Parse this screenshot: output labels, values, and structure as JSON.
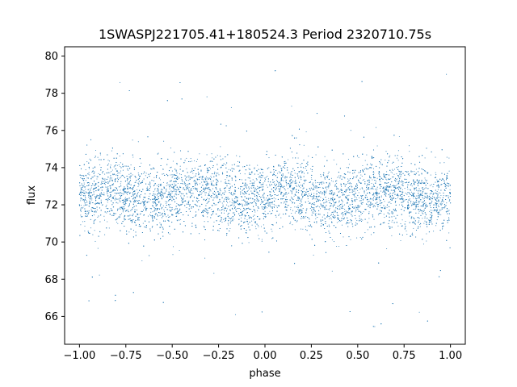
{
  "chart_data": {
    "type": "scatter",
    "title": "1SWASPJ221705.41+180524.3 Period 2320710.75s",
    "xlabel": "phase",
    "ylabel": "flux",
    "xlim": [
      -1.08,
      1.08
    ],
    "ylim": [
      64.5,
      80.5
    ],
    "xticks": [
      -1.0,
      -0.75,
      -0.5,
      -0.25,
      0.0,
      0.25,
      0.5,
      0.75,
      1.0
    ],
    "xtick_labels": [
      "−1.00",
      "−0.75",
      "−0.50",
      "−0.25",
      "0.00",
      "0.25",
      "0.50",
      "0.75",
      "1.00"
    ],
    "yticks": [
      66,
      68,
      70,
      72,
      74,
      76,
      78,
      80
    ],
    "ytick_labels": [
      "66",
      "68",
      "70",
      "72",
      "74",
      "76",
      "78",
      "80"
    ],
    "grid": false,
    "legend": "none",
    "marker_color": "#1f77b4",
    "series": [
      {
        "description_free": true,
        "x_range": [
          -1.0,
          1.0
        ],
        "y_core_range": [
          70.5,
          74.5
        ],
        "y_full_range": [
          65.2,
          79.6
        ],
        "points": [
          [
            -1.0,
            72.0
          ],
          [
            -0.95,
            72.5
          ],
          [
            -0.9,
            72.8
          ],
          [
            -0.85,
            72.6
          ],
          [
            -0.8,
            72.9
          ],
          [
            -0.75,
            72.7
          ],
          [
            -0.7,
            72.6
          ],
          [
            -0.65,
            72.4
          ],
          [
            -0.6,
            72.3
          ],
          [
            -0.55,
            72.5
          ],
          [
            -0.5,
            72.4
          ],
          [
            -0.45,
            72.6
          ],
          [
            -0.4,
            72.8
          ],
          [
            -0.35,
            72.7
          ],
          [
            -0.3,
            72.5
          ],
          [
            -0.25,
            72.6
          ],
          [
            -0.2,
            72.4
          ],
          [
            -0.15,
            72.2
          ],
          [
            -0.1,
            72.0
          ],
          [
            -0.05,
            72.1
          ],
          [
            0.0,
            72.0
          ],
          [
            0.05,
            72.2
          ],
          [
            0.1,
            72.5
          ],
          [
            0.15,
            72.8
          ],
          [
            0.2,
            72.6
          ],
          [
            0.25,
            72.9
          ],
          [
            0.3,
            72.7
          ],
          [
            0.35,
            72.6
          ],
          [
            0.4,
            72.4
          ],
          [
            0.45,
            72.3
          ],
          [
            0.5,
            72.5
          ],
          [
            0.55,
            72.4
          ],
          [
            0.6,
            72.6
          ],
          [
            0.65,
            72.8
          ],
          [
            0.7,
            72.7
          ],
          [
            0.75,
            72.5
          ],
          [
            0.8,
            72.6
          ],
          [
            0.85,
            72.4
          ],
          [
            0.9,
            72.2
          ],
          [
            0.95,
            72.0
          ],
          [
            1.0,
            72.1
          ]
        ]
      }
    ]
  }
}
